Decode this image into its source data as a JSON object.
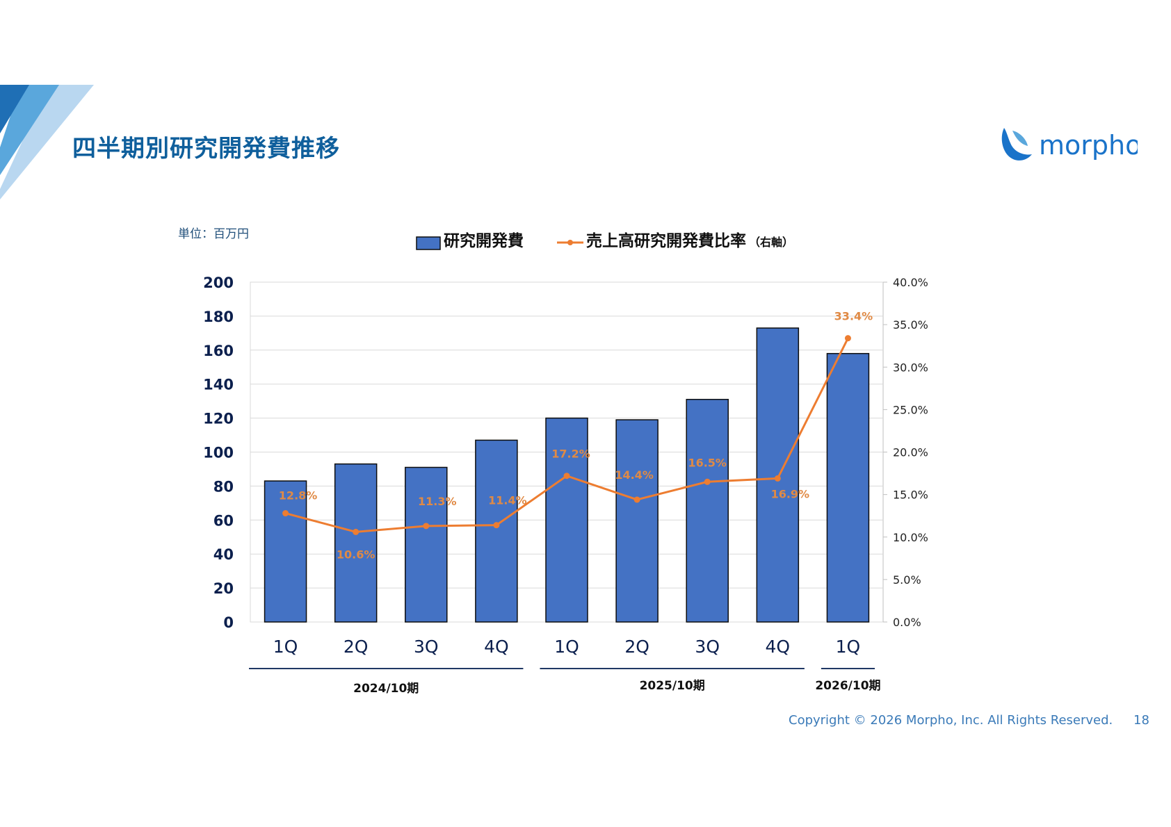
{
  "slide": {
    "title": "四半期別研究開発費推移",
    "unit": "単位：百万円",
    "logo_text": "morpho",
    "copyright": "Copyright © 2026 Morpho, Inc. All Rights Reserved.",
    "page_number": "18"
  },
  "colors": {
    "bar": "#4472c4",
    "bar_border": "#0d0d0d",
    "line": "#ed7d31",
    "title": "#0f5f9c",
    "accent_light": "#b9d7f0",
    "accent_mid": "#5aa7dc",
    "accent_dark": "#1f6fb5",
    "footer": "#3a7ab8"
  },
  "chart_data": {
    "type": "bar",
    "title": "",
    "categories": [
      "1Q",
      "2Q",
      "3Q",
      "4Q",
      "1Q",
      "2Q",
      "3Q",
      "4Q",
      "1Q"
    ],
    "series": [
      {
        "name": "研究開発費",
        "type": "bar",
        "axis": "left",
        "values": [
          83,
          93,
          91,
          107,
          120,
          119,
          131,
          173,
          158
        ]
      },
      {
        "name": "売上高研究開発費比率",
        "name_suffix": "（右軸）",
        "type": "line",
        "axis": "right",
        "values": [
          12.8,
          10.6,
          11.3,
          11.4,
          17.2,
          14.4,
          16.5,
          16.9,
          33.4
        ],
        "labels": [
          "12.8%",
          "10.6%",
          "11.3%",
          "11.4%",
          "17.2%",
          "14.4%",
          "16.5%",
          "16.9%",
          "33.4%"
        ]
      }
    ],
    "y_left": {
      "range": [
        0,
        200
      ],
      "ticks": [
        "0",
        "20",
        "40",
        "60",
        "80",
        "100",
        "120",
        "140",
        "160",
        "180",
        "200"
      ]
    },
    "y_right": {
      "range": [
        0,
        40
      ],
      "ticks": [
        "0.0%",
        "5.0%",
        "10.0%",
        "15.0%",
        "20.0%",
        "25.0%",
        "30.0%",
        "35.0%",
        "40.0%"
      ]
    },
    "periods": [
      {
        "label": "2024/10期",
        "start": 0,
        "end": 3
      },
      {
        "label": "2025/10期",
        "start": 4,
        "end": 7
      },
      {
        "label": "2026/10期",
        "start": 8,
        "end": 8
      }
    ],
    "grid": true,
    "legend_position": "top"
  }
}
